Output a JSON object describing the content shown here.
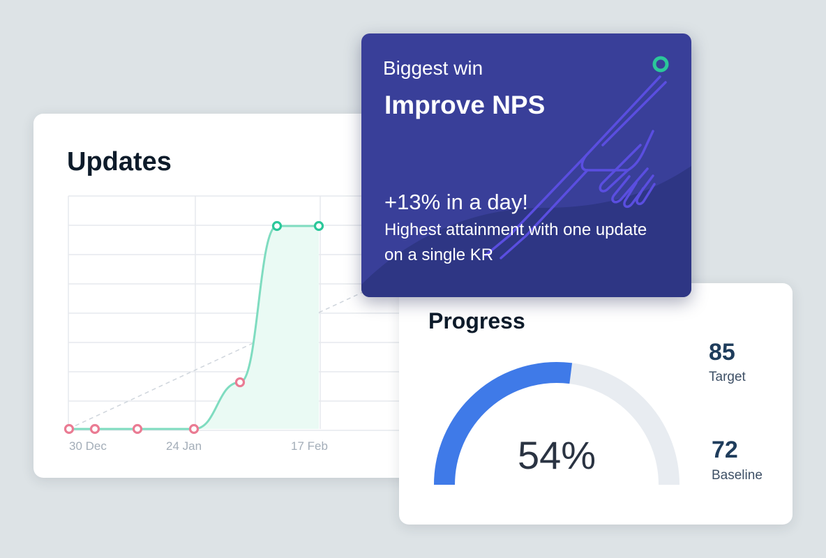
{
  "updates": {
    "title": "Updates",
    "chart_data": {
      "type": "line",
      "x_ticks": [
        "30 Dec",
        "24 Jan",
        "17 Feb"
      ],
      "series": [
        {
          "values": [
            0,
            0,
            0,
            0,
            23,
            100,
            100
          ],
          "point_status": [
            "behind",
            "behind",
            "behind",
            "behind",
            "behind",
            "on-track",
            "on-track"
          ]
        }
      ],
      "ylim": [
        0,
        100
      ],
      "grid": true,
      "dashed_trend_line": true,
      "colors": {
        "line": "#7fdcc0",
        "fill": "#eafaf4",
        "behind": "#ea7b93",
        "on_track": "#2bc79a",
        "grid": "#e6e9ed",
        "tick": "#a3adb8"
      }
    }
  },
  "biggest_win": {
    "eyebrow": "Biggest win",
    "title": "Improve NPS",
    "stat": "+13% in a day!",
    "description": "Highest attainment with one update on a single KR",
    "icon": "pointing-hand-icon",
    "colors": {
      "background": "#393f99",
      "wave": "#2e3684",
      "icon_stroke": "#5a4ee0",
      "dot": "#2bc79a"
    }
  },
  "progress": {
    "title": "Progress",
    "percent": 54,
    "value_label": "54%",
    "target": {
      "value": "85",
      "label": "Target"
    },
    "baseline": {
      "value": "72",
      "label": "Baseline"
    },
    "colors": {
      "arc": "#3f7ae8",
      "track": "#e8ecf1"
    }
  }
}
